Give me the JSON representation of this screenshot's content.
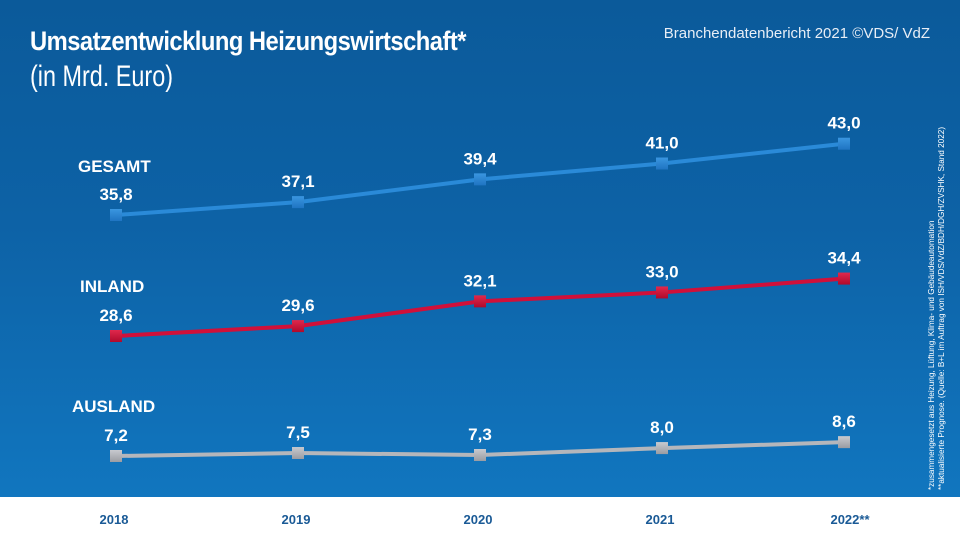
{
  "header": {
    "title": "Umsatzentwicklung Heizungswirtschaft*",
    "subtitle": "(in Mrd. Euro)",
    "source": "Branchendatenbericht 2021 ©VDS/ VdZ"
  },
  "footnotes": [
    "*zusammengesetzt aus Heizung, Lüftung, Klima- und Gebäudeautomation",
    "**aktualisierte Prognose. (Quelle: B+L im Auftrag von ISH/VDS/VdZ/BDH/DGH/ZVSHK, Stand 2022)"
  ],
  "colors": {
    "background_top": "#0b5a9a",
    "background_bottom": "#1176bf",
    "gesamt": "#2a8ad8",
    "inland": "#d0103a",
    "ausland": "#b4b6bb",
    "year_text": "#1a5a96"
  },
  "chart_data": {
    "type": "line",
    "title": "Umsatzentwicklung Heizungswirtschaft*",
    "subtitle": "(in Mrd. Euro)",
    "xlabel": "",
    "ylabel": "Mrd. Euro",
    "categories": [
      "2018",
      "2019",
      "2020",
      "2021",
      "2022**"
    ],
    "grid": false,
    "legend": "inline-left",
    "series": [
      {
        "name": "GESAMT",
        "color": "#2a8ad8",
        "values": [
          35.8,
          37.1,
          39.4,
          41.0,
          43.0
        ],
        "labels": [
          "35,8",
          "37,1",
          "39,4",
          "41,0",
          "43,0"
        ]
      },
      {
        "name": "INLAND",
        "color": "#d0103a",
        "values": [
          28.6,
          29.6,
          32.1,
          33.0,
          34.4
        ],
        "labels": [
          "28,6",
          "29,6",
          "32,1",
          "33,0",
          "34,4"
        ]
      },
      {
        "name": "AUSLAND",
        "color": "#b4b6bb",
        "values": [
          7.2,
          7.5,
          7.3,
          8.0,
          8.6
        ],
        "labels": [
          "7,2",
          "7,5",
          "7,3",
          "8,0",
          "8,6"
        ]
      }
    ]
  }
}
